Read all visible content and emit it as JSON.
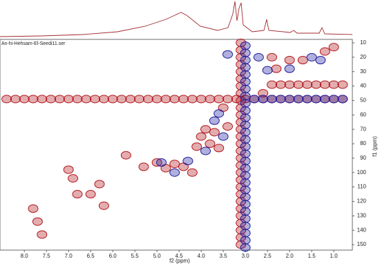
{
  "chart_data": {
    "type": "contour",
    "title": "An-hi-Hehsam-El-Seedi11.ser",
    "xlabel": "f2 (ppm)",
    "ylabel": "f1 (ppm)",
    "xlim": [
      8.55,
      0.58
    ],
    "ylim": [
      7.6,
      153.8
    ],
    "xticks": [
      {
        "value": 8,
        "label": "8.0"
      },
      7.5,
      {
        "value": 7,
        "label": "7.0"
      },
      6.5,
      {
        "value": 6,
        "label": "6.0"
      },
      5.5,
      {
        "value": 5,
        "label": "5.0"
      },
      4.5,
      {
        "value": 4,
        "label": "4.0"
      },
      3.5,
      {
        "value": 3,
        "label": "3.0"
      },
      2.5,
      {
        "value": 2,
        "label": "2.0"
      },
      1.5,
      {
        "value": 1,
        "label": "1.0"
      }
    ],
    "yticks": [
      10,
      20,
      30,
      40,
      50,
      60,
      70,
      80,
      90,
      100,
      110,
      120,
      130,
      140,
      150
    ],
    "series": [
      {
        "color": "#b0151b",
        "x": [
          8.4,
          8.2,
          8.0,
          7.8,
          7.6,
          7.4,
          7.2,
          7.0,
          6.8,
          6.6,
          6.4,
          6.2,
          6.0,
          5.8,
          5.6,
          5.4,
          5.2,
          5.0,
          4.8,
          4.6,
          4.4,
          4.2,
          4.0,
          3.8,
          3.6,
          3.4,
          3.2,
          3.0,
          2.8,
          2.6,
          2.4,
          2.2,
          2.0,
          1.8,
          1.6,
          1.4,
          1.2,
          1.0,
          0.8,
          3.1,
          3.1,
          3.1,
          3.1,
          3.1,
          3.1,
          3.1,
          3.1,
          3.1,
          3.1,
          3.1,
          3.1,
          3.1,
          3.1,
          3.1,
          3.1,
          3.1,
          3.1,
          3.1,
          3.1,
          3.1,
          3.1,
          3.1,
          3.1,
          3.1,
          3.1,
          3.1,
          3.1,
          3.1,
          2.4,
          2.2,
          2.0,
          1.8,
          1.6,
          1.4,
          1.2,
          1.0,
          0.8,
          7.8,
          7.7,
          7.6,
          7.0,
          6.9,
          6.8,
          6.5,
          6.3,
          6.2,
          5.7,
          5.3,
          5.0,
          4.8,
          4.6,
          4.4,
          4.2,
          4.0,
          3.8,
          3.7,
          3.6,
          3.9,
          4.1,
          3.4,
          3.5,
          2.6,
          2.3,
          2.0,
          1.7,
          1.2,
          1.0,
          2.4
        ],
        "values": [
          49,
          49,
          49,
          49,
          49,
          49,
          49,
          49,
          49,
          49,
          49,
          49,
          49,
          49,
          49,
          49,
          49,
          49,
          49,
          49,
          49,
          49,
          49,
          49,
          49,
          49,
          49,
          49,
          49,
          49,
          49,
          49,
          49,
          49,
          49,
          49,
          49,
          49,
          49,
          10,
          15,
          20,
          25,
          30,
          35,
          40,
          45,
          50,
          55,
          60,
          65,
          70,
          75,
          80,
          85,
          90,
          95,
          100,
          105,
          110,
          115,
          120,
          125,
          130,
          135,
          140,
          145,
          150,
          39,
          39,
          39,
          39,
          39,
          39,
          39,
          39,
          39,
          125,
          134,
          143,
          98,
          104,
          115,
          115,
          108,
          123,
          88,
          96,
          93,
          97,
          94,
          96,
          100,
          75,
          80,
          72,
          83,
          70,
          82,
          68,
          55,
          45,
          28,
          22,
          22,
          16,
          13,
          20
        ]
      },
      {
        "color": "#1d1d9e",
        "x": [
          3.0,
          3.0,
          3.0,
          3.0,
          3.0,
          3.0,
          3.0,
          3.0,
          3.0,
          3.0,
          3.0,
          3.0,
          3.0,
          3.0,
          3.0,
          3.0,
          3.0,
          3.0,
          3.0,
          3.0,
          3.0,
          3.0,
          3.0,
          3.0,
          3.0,
          3.0,
          3.0,
          3.0,
          3.0,
          2.8,
          2.6,
          2.4,
          2.2,
          2.0,
          1.8,
          1.6,
          1.4,
          1.2,
          1.0,
          0.8,
          3.6,
          3.7,
          3.5,
          2.5,
          2.0,
          1.5,
          1.3,
          4.9,
          4.6,
          4.3,
          3.4,
          2.7,
          3.9
        ],
        "values": [
          12,
          17,
          22,
          27,
          32,
          37,
          42,
          47,
          52,
          57,
          62,
          67,
          72,
          77,
          82,
          87,
          92,
          97,
          102,
          107,
          112,
          117,
          122,
          127,
          132,
          137,
          142,
          147,
          152,
          49,
          49,
          49,
          49,
          49,
          49,
          49,
          49,
          49,
          49,
          49,
          59,
          64,
          75,
          29,
          28,
          20,
          22,
          93,
          100,
          92,
          18,
          20,
          85
        ]
      }
    ]
  }
}
